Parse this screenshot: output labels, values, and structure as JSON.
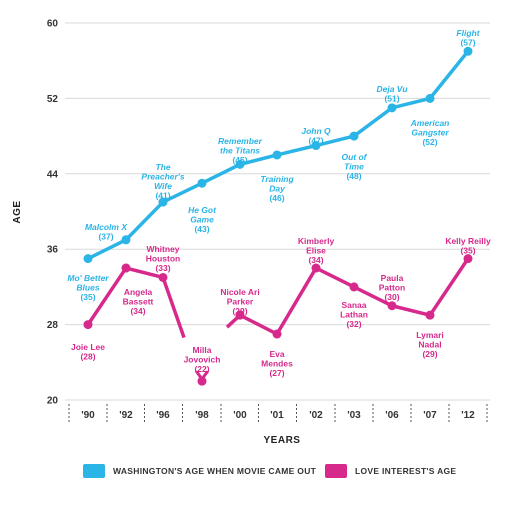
{
  "chart_data": {
    "type": "line",
    "categories": [
      "'90",
      "'92",
      "'96",
      "'98",
      "'00",
      "'01",
      "'02",
      "'03",
      "'06",
      "'07",
      "'12"
    ],
    "xlabel": "YEARS",
    "ylabel": "AGE",
    "ylim": [
      20,
      60
    ],
    "yticks": [
      "20",
      "28",
      "36",
      "44",
      "52",
      "60"
    ],
    "grid": "horizontal",
    "legend_position": "bottom",
    "series": [
      {
        "name": "WASHINGTON'S AGE WHEN MOVIE CAME OUT",
        "color": "#2bb4e6",
        "values": [
          35,
          37,
          41,
          43,
          45,
          46,
          47,
          48,
          51,
          52,
          57
        ],
        "labels": [
          {
            "title": [
              "Mo' Better",
              "Blues"
            ],
            "age": "(35)"
          },
          {
            "title": [
              "Malcolm X"
            ],
            "age": "(37)"
          },
          {
            "title": [
              "The",
              "Preacher's",
              "Wife"
            ],
            "age": "(41)"
          },
          {
            "title": [
              "He Got",
              "Game"
            ],
            "age": "(43)"
          },
          {
            "title": [
              "Remember",
              "the Titans"
            ],
            "age": "(45)"
          },
          {
            "title": [
              "Training",
              "Day"
            ],
            "age": "(46)"
          },
          {
            "title": [
              "John Q"
            ],
            "age": "(47)"
          },
          {
            "title": [
              "Out of",
              "Time"
            ],
            "age": "(48)"
          },
          {
            "title": [
              "Deja Vu"
            ],
            "age": "(51)"
          },
          {
            "title": [
              "American",
              "Gangster"
            ],
            "age": "(52)"
          },
          {
            "title": [
              "Flight"
            ],
            "age": "(57)"
          }
        ]
      },
      {
        "name": "LOVE INTEREST'S AGE",
        "color": "#d6298b",
        "values": [
          28,
          34,
          33,
          22,
          29,
          27,
          34,
          32,
          30,
          29,
          35
        ],
        "labels": [
          {
            "title": [
              "Joie Lee"
            ],
            "age": "(28)"
          },
          {
            "title": [
              "Angela",
              "Bassett"
            ],
            "age": "(34)"
          },
          {
            "title": [
              "Whitney",
              "Houston"
            ],
            "age": "(33)"
          },
          {
            "title": [
              "Milla",
              "Jovovich"
            ],
            "age": "(22)"
          },
          {
            "title": [
              "Nicole Ari",
              "Parker"
            ],
            "age": "(29)"
          },
          {
            "title": [
              "Eva",
              "Mendes"
            ],
            "age": "(27)"
          },
          {
            "title": [
              "Kimberly",
              "Elise"
            ],
            "age": "(34)"
          },
          {
            "title": [
              "Sanaa",
              "Lathan"
            ],
            "age": "(32)"
          },
          {
            "title": [
              "Paula",
              "Patton"
            ],
            "age": "(30)"
          },
          {
            "title": [
              "Lymari",
              "Nadal"
            ],
            "age": "(29)"
          },
          {
            "title": [
              "Kelly Reilly"
            ],
            "age": "(35)"
          }
        ]
      }
    ]
  }
}
